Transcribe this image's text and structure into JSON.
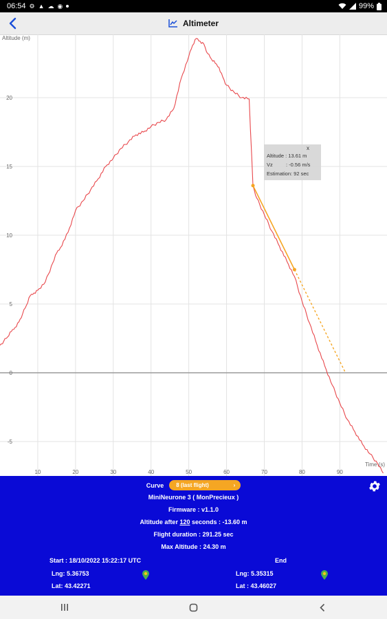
{
  "status_bar": {
    "time": "06:54",
    "battery": "99%"
  },
  "app_bar": {
    "title": "Altimeter",
    "icons": {
      "back": "back-arrow-icon",
      "title": "line-chart-icon"
    }
  },
  "chart_data": {
    "type": "line",
    "xlabel": "Time (s)",
    "ylabel": "Altitude (m)",
    "xlim": [
      0,
      102.5
    ],
    "ylim": [
      -7.5,
      24.6
    ],
    "x_ticks": [
      10,
      20,
      30,
      40,
      50,
      60,
      70,
      80,
      90
    ],
    "y_ticks": [
      -5,
      0,
      5,
      10,
      15,
      20
    ],
    "grid": true,
    "colors": {
      "series": "#e8474b",
      "estimation": "#f5a623",
      "grid": "#e3e3e3",
      "zero_line": "#9a9a9a"
    },
    "series": [
      {
        "x": [
          0,
          1,
          2,
          3,
          4,
          5,
          6,
          7,
          8,
          9,
          10,
          12,
          14,
          15,
          16,
          18,
          20,
          22,
          24,
          26,
          28,
          30,
          32,
          34,
          36,
          38,
          40,
          42,
          44,
          46,
          48,
          50,
          51,
          52,
          53,
          54,
          55,
          56,
          57,
          58,
          59,
          60,
          62,
          64,
          66,
          67,
          68,
          70,
          72,
          74,
          76,
          78,
          80,
          82,
          84,
          86,
          88,
          90,
          92,
          94,
          96,
          98,
          100,
          101.5
        ],
        "y": [
          2.0,
          2.3,
          2.6,
          3.0,
          3.3,
          3.7,
          4.3,
          4.9,
          5.6,
          5.8,
          6.0,
          6.6,
          8.0,
          8.7,
          9.1,
          10.2,
          11.8,
          12.5,
          13.3,
          14.1,
          15.0,
          15.6,
          16.3,
          16.8,
          17.3,
          17.5,
          17.9,
          18.2,
          18.4,
          19.2,
          21.4,
          23.0,
          23.8,
          24.3,
          24.1,
          23.9,
          23.2,
          22.8,
          22.5,
          22.2,
          21.5,
          20.9,
          20.4,
          20.0,
          19.9,
          13.6,
          12.7,
          11.5,
          10.3,
          9.2,
          8.1,
          7.0,
          5.2,
          3.6,
          2.0,
          0.5,
          -0.9,
          -2.2,
          -3.4,
          -4.3,
          -5.2,
          -5.9,
          -6.6,
          -7.3
        ]
      }
    ],
    "estimation": {
      "x": [
        67,
        78,
        91.5
      ],
      "y": [
        13.61,
        7.5,
        0.0
      ],
      "marker_x": 78,
      "marker_y": 7.5
    },
    "tooltip": {
      "close": "x",
      "altitude": "Altitude : 13.61 m",
      "vz_label": "Vz",
      "vz_value": ": -0.56 m/s",
      "estimation": "Estimation: 92 sec"
    }
  },
  "panel": {
    "curve_label": "Curve",
    "curve_value": "8 (last flight)",
    "device": "MiniNeurone 3 ( MonPrecieux )",
    "firmware": "Firmware :   v1.1.0",
    "altitude_after_prefix": "Altitude after",
    "altitude_after_seconds": "120",
    "altitude_after_suffix": "seconds : -13.60 m",
    "flight_duration": "Flight duration :   291.25 sec",
    "max_altitude": "Max Altitude :   24.30 m",
    "start": "Start : 18/10/2022 15:22:17 UTC",
    "end": "End",
    "start_lng": "Lng: 5.36753",
    "start_lat": "Lat: 43.42271",
    "end_lng": "Lng: 5.35315",
    "end_lat": "Lat : 43.46027",
    "icons": {
      "settings": "gear-icon",
      "start_pin": "map-pin-icon",
      "end_pin": "map-pin-icon"
    }
  },
  "nav_bar": {
    "icons": [
      "recents-icon",
      "home-icon",
      "back-icon"
    ]
  }
}
